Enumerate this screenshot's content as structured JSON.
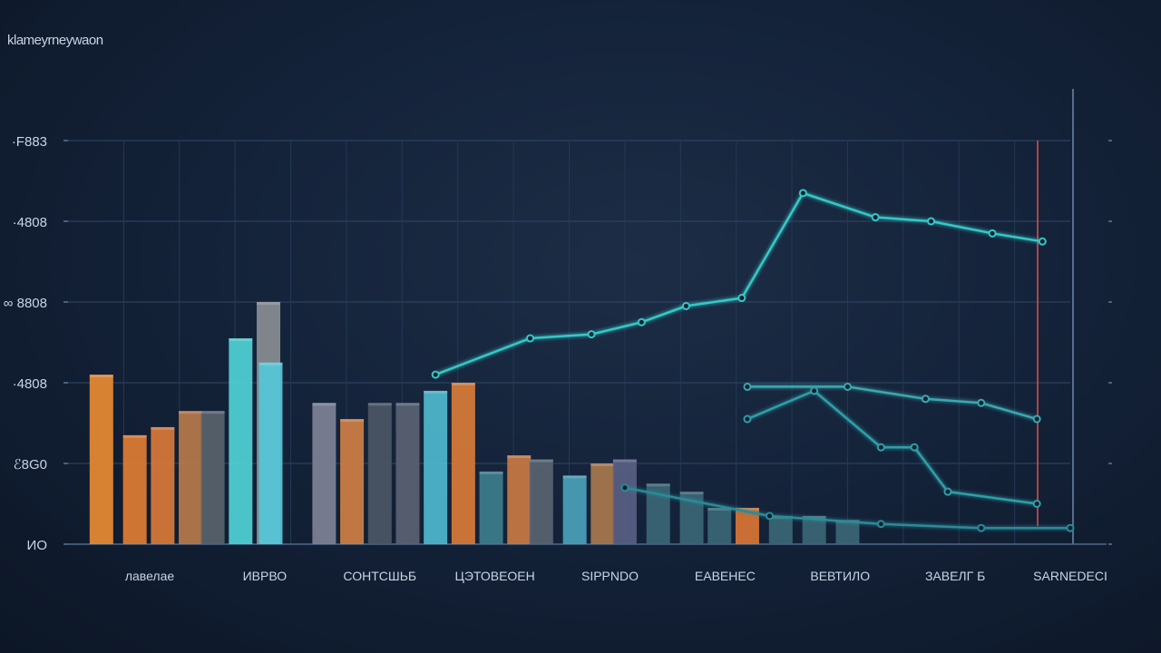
{
  "chart_data": {
    "type": "bar",
    "title": "klameyrneywaon",
    "yticks": [
      "ИО",
      "ℰ8G0",
      "·4808",
      "∞ 8808",
      "·4808",
      "·F883"
    ],
    "ytick_values": [
      0,
      20,
      40,
      60,
      80,
      100
    ],
    "ylim": [
      0,
      100
    ],
    "xlabels": [
      "лавелае",
      "ИВРВО",
      "СОНТСШЬБ",
      "ЦЭТОВЕОЕН",
      "SIPPNDO",
      "ЕАВЕНЕС",
      "ВЕВТИЛО",
      "ЗАВЕЛГ Б",
      "SARNEDECI"
    ],
    "bars": [
      {
        "x": 0.3,
        "value": 42,
        "color": "#e88a33"
      },
      {
        "x": 0.6,
        "value": 27,
        "color": "#e07d34"
      },
      {
        "x": 0.85,
        "value": 29,
        "color": "#d8793a"
      },
      {
        "x": 1.1,
        "value": 33,
        "color": "#b77a4a"
      },
      {
        "x": 1.3,
        "value": 33,
        "color": "#59636d"
      },
      {
        "x": 1.55,
        "value": 51,
        "color": "#4fd2d6"
      },
      {
        "x": 1.8,
        "value": 60,
        "color": "#8a8d93"
      },
      {
        "x": 1.82,
        "value": 45,
        "color": "#55c8d9"
      },
      {
        "x": 2.3,
        "value": 35,
        "color": "#7e8296"
      },
      {
        "x": 2.55,
        "value": 31,
        "color": "#d07f44"
      },
      {
        "x": 2.8,
        "value": 35,
        "color": "#4b5666"
      },
      {
        "x": 3.05,
        "value": 35,
        "color": "#5a6272"
      },
      {
        "x": 3.3,
        "value": 38,
        "color": "#4fb9ce"
      },
      {
        "x": 3.55,
        "value": 40,
        "color": "#d97b38"
      },
      {
        "x": 3.8,
        "value": 18,
        "color": "#3d7e8c"
      },
      {
        "x": 4.05,
        "value": 22,
        "color": "#c97a44"
      },
      {
        "x": 4.25,
        "value": 21,
        "color": "#5a6371"
      },
      {
        "x": 4.55,
        "value": 17,
        "color": "#4aa1b8"
      },
      {
        "x": 4.8,
        "value": 20,
        "color": "#a8784e"
      },
      {
        "x": 5.0,
        "value": 21,
        "color": "#5a5f83"
      },
      {
        "x": 5.3,
        "value": 15,
        "color": "#3b6675"
      },
      {
        "x": 5.6,
        "value": 13,
        "color": "#3b6675"
      },
      {
        "x": 5.85,
        "value": 9,
        "color": "#3b6675"
      },
      {
        "x": 6.1,
        "value": 9,
        "color": "#d97535"
      },
      {
        "x": 6.4,
        "value": 7,
        "color": "#3b6675"
      },
      {
        "x": 6.7,
        "value": 7,
        "color": "#3b6675"
      },
      {
        "x": 7.0,
        "value": 6,
        "color": "#3b6675"
      }
    ],
    "series": [
      {
        "color": "#34c8c6",
        "points": [
          [
            3.3,
            42
          ],
          [
            4.15,
            51
          ],
          [
            4.7,
            52
          ],
          [
            5.15,
            55
          ],
          [
            5.55,
            59
          ],
          [
            6.05,
            61
          ],
          [
            6.6,
            87
          ],
          [
            7.25,
            81
          ],
          [
            7.75,
            80
          ],
          [
            8.3,
            77
          ],
          [
            8.75,
            75
          ]
        ]
      },
      {
        "color": "#3aa8b0",
        "points": [
          [
            6.1,
            39
          ],
          [
            7.0,
            39
          ],
          [
            7.7,
            36
          ],
          [
            8.2,
            35
          ],
          [
            8.7,
            31
          ]
        ]
      },
      {
        "color": "#2f9fa8",
        "points": [
          [
            6.1,
            31
          ],
          [
            6.7,
            38
          ],
          [
            7.3,
            24
          ],
          [
            7.6,
            24
          ],
          [
            7.9,
            13
          ],
          [
            8.7,
            10
          ]
        ]
      },
      {
        "color": "#2a8b97",
        "points": [
          [
            5.0,
            14
          ],
          [
            6.3,
            7
          ],
          [
            7.3,
            5
          ],
          [
            8.2,
            4
          ],
          [
            9.0,
            4
          ]
        ]
      }
    ]
  }
}
